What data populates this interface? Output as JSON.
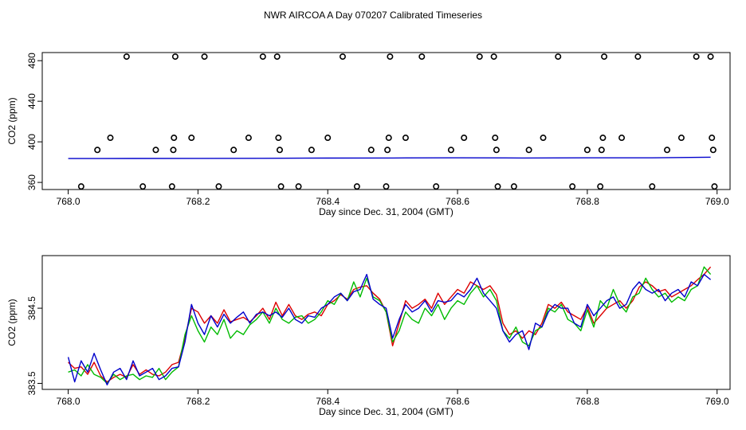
{
  "title": "NWR AIRCOA A  Day 070207  Calibrated Timeseries",
  "colors": {
    "red": "#dd0000",
    "green": "#00bb00",
    "blue": "#0000cc",
    "black": "#000000"
  },
  "chart_data": [
    {
      "type": "scatter",
      "title": "",
      "xlabel": "Day since Dec. 31, 2004 (GMT)",
      "ylabel": "CO2 (ppm)",
      "xlim": [
        767.96,
        769.02
      ],
      "ylim": [
        353,
        488
      ],
      "xticks": [
        768.0,
        768.2,
        768.4,
        768.6,
        768.8,
        769.0
      ],
      "xtick_labels": [
        "768.0",
        "768.2",
        "768.4",
        "768.6",
        "768.8",
        "769.0"
      ],
      "yticks": [
        360,
        400,
        440,
        480
      ],
      "ytick_labels": [
        "360",
        "400",
        "440",
        "480"
      ],
      "grid": false,
      "legend": "none",
      "points": [
        [
          768.02,
          356
        ],
        [
          768.045,
          392
        ],
        [
          768.065,
          404
        ],
        [
          768.09,
          484
        ],
        [
          768.115,
          356
        ],
        [
          768.135,
          392
        ],
        [
          768.16,
          356
        ],
        [
          768.162,
          392
        ],
        [
          768.163,
          404
        ],
        [
          768.165,
          484
        ],
        [
          768.19,
          404
        ],
        [
          768.21,
          484
        ],
        [
          768.232,
          356
        ],
        [
          768.255,
          392
        ],
        [
          768.278,
          404
        ],
        [
          768.3,
          484
        ],
        [
          768.322,
          484
        ],
        [
          768.324,
          404
        ],
        [
          768.326,
          392
        ],
        [
          768.328,
          356
        ],
        [
          768.355,
          356
        ],
        [
          768.375,
          392
        ],
        [
          768.4,
          404
        ],
        [
          768.423,
          484
        ],
        [
          768.445,
          356
        ],
        [
          768.467,
          392
        ],
        [
          768.49,
          356
        ],
        [
          768.492,
          392
        ],
        [
          768.494,
          404
        ],
        [
          768.496,
          484
        ],
        [
          768.52,
          404
        ],
        [
          768.545,
          484
        ],
        [
          768.567,
          356
        ],
        [
          768.59,
          392
        ],
        [
          768.61,
          404
        ],
        [
          768.634,
          484
        ],
        [
          768.656,
          484
        ],
        [
          768.658,
          404
        ],
        [
          768.66,
          392
        ],
        [
          768.662,
          356
        ],
        [
          768.687,
          356
        ],
        [
          768.71,
          392
        ],
        [
          768.732,
          404
        ],
        [
          768.755,
          484
        ],
        [
          768.777,
          356
        ],
        [
          768.8,
          392
        ],
        [
          768.82,
          356
        ],
        [
          768.822,
          392
        ],
        [
          768.824,
          404
        ],
        [
          768.826,
          484
        ],
        [
          768.853,
          404
        ],
        [
          768.878,
          484
        ],
        [
          768.9,
          356
        ],
        [
          768.923,
          392
        ],
        [
          768.945,
          404
        ],
        [
          768.968,
          484
        ],
        [
          768.99,
          484
        ],
        [
          768.992,
          404
        ],
        [
          768.994,
          392
        ],
        [
          768.996,
          356
        ]
      ],
      "series": [
        {
          "color": "blue",
          "x": [
            768.0,
            768.1,
            768.2,
            768.3,
            768.4,
            768.5,
            768.6,
            768.7,
            768.8,
            768.9,
            768.99
          ],
          "values": [
            383.5,
            383.6,
            383.7,
            383.8,
            384.0,
            384.1,
            384.2,
            384.1,
            384.2,
            384.2,
            384.9
          ]
        }
      ]
    },
    {
      "type": "line",
      "title": "",
      "xlabel": "Day since Dec. 31, 2004 (GMT)",
      "ylabel": "CO2 (ppm)",
      "xlim": [
        767.96,
        769.02
      ],
      "ylim": [
        383.42,
        385.2
      ],
      "xticks": [
        768.0,
        768.2,
        768.4,
        768.6,
        768.8,
        769.0
      ],
      "xtick_labels": [
        "768.0",
        "768.2",
        "768.4",
        "768.6",
        "768.8",
        "769.0"
      ],
      "yticks": [
        383.5,
        384.5
      ],
      "ytick_labels": [
        "383.5",
        "384.5"
      ],
      "grid": false,
      "legend": "none",
      "series": [
        {
          "color": "red",
          "x": [
            768.0,
            768.01,
            768.02,
            768.03,
            768.04,
            768.05,
            768.06,
            768.07,
            768.08,
            768.09,
            768.1,
            768.11,
            768.12,
            768.13,
            768.14,
            768.15,
            768.16,
            768.17,
            768.18,
            768.19,
            768.2,
            768.21,
            768.22,
            768.23,
            768.24,
            768.25,
            768.26,
            768.27,
            768.28,
            768.29,
            768.3,
            768.31,
            768.32,
            768.33,
            768.34,
            768.35,
            768.36,
            768.37,
            768.38,
            768.39,
            768.4,
            768.41,
            768.42,
            768.43,
            768.44,
            768.45,
            768.46,
            768.47,
            768.48,
            768.49,
            768.5,
            768.51,
            768.52,
            768.53,
            768.54,
            768.55,
            768.56,
            768.57,
            768.58,
            768.59,
            768.6,
            768.61,
            768.62,
            768.63,
            768.64,
            768.65,
            768.66,
            768.67,
            768.68,
            768.69,
            768.7,
            768.71,
            768.72,
            768.73,
            768.74,
            768.75,
            768.76,
            768.77,
            768.78,
            768.79,
            768.8,
            768.81,
            768.82,
            768.83,
            768.84,
            768.85,
            768.86,
            768.87,
            768.88,
            768.89,
            768.9,
            768.91,
            768.92,
            768.93,
            768.94,
            768.95,
            768.96,
            768.97,
            768.98,
            768.99
          ],
          "values": [
            383.78,
            383.7,
            383.72,
            383.62,
            383.78,
            383.6,
            383.52,
            383.58,
            383.62,
            383.58,
            383.75,
            383.62,
            383.68,
            383.62,
            383.6,
            383.65,
            383.75,
            383.78,
            384.1,
            384.5,
            384.45,
            384.3,
            384.4,
            384.3,
            384.48,
            384.32,
            384.35,
            384.38,
            384.32,
            384.4,
            384.5,
            384.35,
            384.58,
            384.4,
            384.55,
            384.4,
            384.35,
            384.42,
            384.45,
            384.4,
            384.55,
            384.6,
            384.68,
            384.62,
            384.75,
            384.78,
            384.8,
            384.7,
            384.62,
            384.45,
            384.0,
            384.3,
            384.6,
            384.5,
            384.55,
            384.62,
            384.5,
            384.7,
            384.55,
            384.65,
            384.75,
            384.7,
            384.85,
            384.8,
            384.75,
            384.8,
            384.68,
            384.3,
            384.15,
            384.2,
            384.1,
            384.2,
            384.15,
            384.3,
            384.55,
            384.5,
            384.58,
            384.45,
            384.4,
            384.35,
            384.52,
            384.3,
            384.4,
            384.5,
            384.55,
            384.6,
            384.5,
            384.6,
            384.78,
            384.85,
            384.8,
            384.72,
            384.75,
            384.65,
            384.7,
            384.75,
            384.8,
            384.88,
            384.95,
            385.05
          ]
        },
        {
          "color": "green",
          "x": [
            768.0,
            768.01,
            768.02,
            768.03,
            768.04,
            768.05,
            768.06,
            768.07,
            768.08,
            768.09,
            768.1,
            768.11,
            768.12,
            768.13,
            768.14,
            768.15,
            768.16,
            768.17,
            768.18,
            768.19,
            768.2,
            768.21,
            768.22,
            768.23,
            768.24,
            768.25,
            768.26,
            768.27,
            768.28,
            768.29,
            768.3,
            768.31,
            768.32,
            768.33,
            768.34,
            768.35,
            768.36,
            768.37,
            768.38,
            768.39,
            768.4,
            768.41,
            768.42,
            768.43,
            768.44,
            768.45,
            768.46,
            768.47,
            768.48,
            768.49,
            768.5,
            768.51,
            768.52,
            768.53,
            768.54,
            768.55,
            768.56,
            768.57,
            768.58,
            768.59,
            768.6,
            768.61,
            768.62,
            768.63,
            768.64,
            768.65,
            768.66,
            768.67,
            768.68,
            768.69,
            768.7,
            768.71,
            768.72,
            768.73,
            768.74,
            768.75,
            768.76,
            768.77,
            768.78,
            768.79,
            768.8,
            768.81,
            768.82,
            768.83,
            768.84,
            768.85,
            768.86,
            768.87,
            768.88,
            768.89,
            768.9,
            768.91,
            768.92,
            768.93,
            768.94,
            768.95,
            768.96,
            768.97,
            768.98,
            768.99
          ],
          "values": [
            383.65,
            383.68,
            383.6,
            383.75,
            383.62,
            383.58,
            383.5,
            383.62,
            383.55,
            383.6,
            383.62,
            383.55,
            383.6,
            383.58,
            383.7,
            383.55,
            383.65,
            383.72,
            384.15,
            384.4,
            384.2,
            384.05,
            384.25,
            384.15,
            384.35,
            384.1,
            384.2,
            384.15,
            384.28,
            384.35,
            384.45,
            384.3,
            384.5,
            384.35,
            384.3,
            384.38,
            384.4,
            384.3,
            384.35,
            384.45,
            384.6,
            384.55,
            384.7,
            384.6,
            384.85,
            384.65,
            384.9,
            384.65,
            384.6,
            384.45,
            384.05,
            384.2,
            384.45,
            384.35,
            384.3,
            384.5,
            384.4,
            384.55,
            384.35,
            384.5,
            384.6,
            384.55,
            384.7,
            384.8,
            384.65,
            384.75,
            384.6,
            384.2,
            384.1,
            384.25,
            384.05,
            384.0,
            384.2,
            384.25,
            384.5,
            384.45,
            384.55,
            384.35,
            384.3,
            384.2,
            384.48,
            384.25,
            384.6,
            384.5,
            384.75,
            384.55,
            384.45,
            384.65,
            384.7,
            384.9,
            384.75,
            384.65,
            384.7,
            384.58,
            384.65,
            384.6,
            384.75,
            384.8,
            385.05,
            384.95
          ]
        },
        {
          "color": "blue",
          "x": [
            768.0,
            768.01,
            768.02,
            768.03,
            768.04,
            768.05,
            768.06,
            768.07,
            768.08,
            768.09,
            768.1,
            768.11,
            768.12,
            768.13,
            768.14,
            768.15,
            768.16,
            768.17,
            768.18,
            768.19,
            768.2,
            768.21,
            768.22,
            768.23,
            768.24,
            768.25,
            768.26,
            768.27,
            768.28,
            768.29,
            768.3,
            768.31,
            768.32,
            768.33,
            768.34,
            768.35,
            768.36,
            768.37,
            768.38,
            768.39,
            768.4,
            768.41,
            768.42,
            768.43,
            768.44,
            768.45,
            768.46,
            768.47,
            768.48,
            768.49,
            768.5,
            768.51,
            768.52,
            768.53,
            768.54,
            768.55,
            768.56,
            768.57,
            768.58,
            768.59,
            768.6,
            768.61,
            768.62,
            768.63,
            768.64,
            768.65,
            768.66,
            768.67,
            768.68,
            768.69,
            768.7,
            768.71,
            768.72,
            768.73,
            768.74,
            768.75,
            768.76,
            768.77,
            768.78,
            768.79,
            768.8,
            768.81,
            768.82,
            768.83,
            768.84,
            768.85,
            768.86,
            768.87,
            768.88,
            768.89,
            768.9,
            768.91,
            768.92,
            768.93,
            768.94,
            768.95,
            768.96,
            768.97,
            768.98,
            768.99
          ],
          "values": [
            383.85,
            383.52,
            383.8,
            383.65,
            383.9,
            383.68,
            383.48,
            383.65,
            383.7,
            383.55,
            383.8,
            383.6,
            383.65,
            383.7,
            383.55,
            383.6,
            383.7,
            383.72,
            384.05,
            384.55,
            384.3,
            384.15,
            384.4,
            384.25,
            384.42,
            384.3,
            384.38,
            384.45,
            384.3,
            384.42,
            384.45,
            384.4,
            384.45,
            384.38,
            384.5,
            384.35,
            384.3,
            384.4,
            384.38,
            384.5,
            384.55,
            384.65,
            384.7,
            384.6,
            384.72,
            384.75,
            384.95,
            384.62,
            384.55,
            384.5,
            384.1,
            384.35,
            384.55,
            384.45,
            384.5,
            384.6,
            384.45,
            384.6,
            384.58,
            384.6,
            384.7,
            384.65,
            384.75,
            384.9,
            384.7,
            384.6,
            384.5,
            384.2,
            384.05,
            384.15,
            384.2,
            383.95,
            384.3,
            384.25,
            384.45,
            384.55,
            384.5,
            384.5,
            384.3,
            384.25,
            384.55,
            384.4,
            384.5,
            384.6,
            384.65,
            384.5,
            384.55,
            384.75,
            384.85,
            384.75,
            384.7,
            384.75,
            384.6,
            384.7,
            384.75,
            384.65,
            384.85,
            384.8,
            384.95,
            384.88
          ]
        }
      ]
    }
  ]
}
